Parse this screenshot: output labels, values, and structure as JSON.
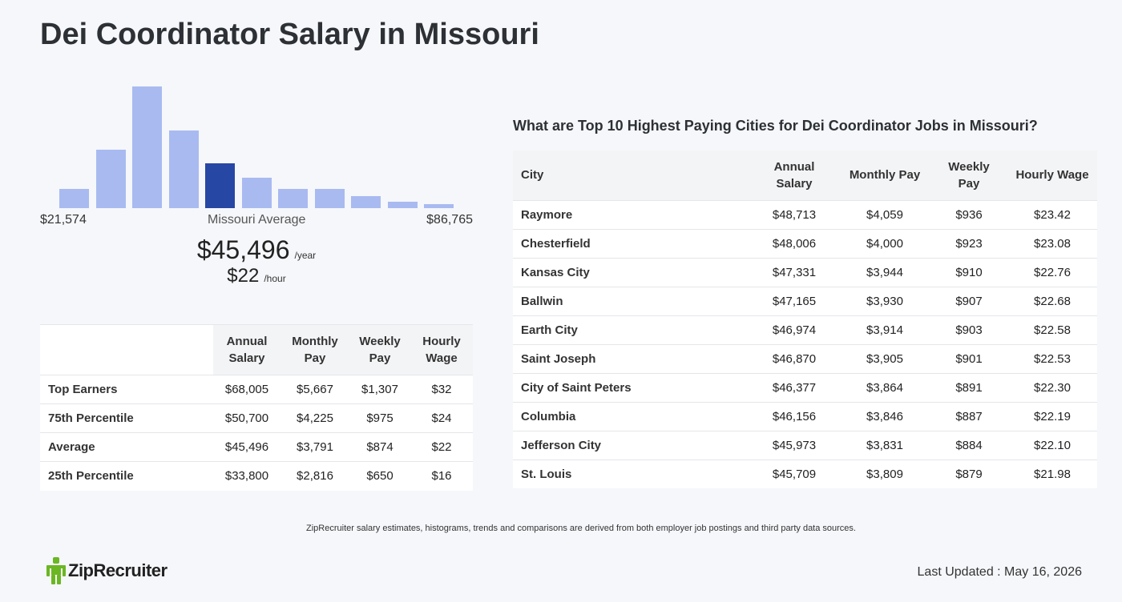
{
  "title": "Dei Coordinator Salary in Missouri",
  "histogram": {
    "min_label": "$21,574",
    "max_label": "$86,765",
    "avg_label": "Missouri Average",
    "bars": [
      0.16,
      0.48,
      1.0,
      0.64,
      0.37,
      0.25,
      0.16,
      0.16,
      0.1,
      0.05,
      0.03
    ],
    "highlight_index": 4,
    "bar_color": "#a9baf1",
    "highlight_color": "#2747a5"
  },
  "average": {
    "year_value": "$45,496",
    "year_unit": "/year",
    "hour_value": "$22",
    "hour_unit": "/hour"
  },
  "percentile_table": {
    "headers": [
      "Annual Salary",
      "Monthly Pay",
      "Weekly Pay",
      "Hourly Wage"
    ],
    "rows": [
      {
        "label": "Top Earners",
        "annual": "$68,005",
        "monthly": "$5,667",
        "weekly": "$1,307",
        "hourly": "$32"
      },
      {
        "label": "75th Percentile",
        "annual": "$50,700",
        "monthly": "$4,225",
        "weekly": "$975",
        "hourly": "$24"
      },
      {
        "label": "Average",
        "annual": "$45,496",
        "monthly": "$3,791",
        "weekly": "$874",
        "hourly": "$22"
      },
      {
        "label": "25th Percentile",
        "annual": "$33,800",
        "monthly": "$2,816",
        "weekly": "$650",
        "hourly": "$16"
      }
    ]
  },
  "cities": {
    "heading": "What are Top 10 Highest Paying Cities for Dei Coordinator Jobs in Missouri?",
    "headers": [
      "City",
      "Annual Salary",
      "Monthly Pay",
      "Weekly Pay",
      "Hourly Wage"
    ],
    "rows": [
      {
        "city": "Raymore",
        "annual": "$48,713",
        "monthly": "$4,059",
        "weekly": "$936",
        "hourly": "$23.42"
      },
      {
        "city": "Chesterfield",
        "annual": "$48,006",
        "monthly": "$4,000",
        "weekly": "$923",
        "hourly": "$23.08"
      },
      {
        "city": "Kansas City",
        "annual": "$47,331",
        "monthly": "$3,944",
        "weekly": "$910",
        "hourly": "$22.76"
      },
      {
        "city": "Ballwin",
        "annual": "$47,165",
        "monthly": "$3,930",
        "weekly": "$907",
        "hourly": "$22.68"
      },
      {
        "city": "Earth City",
        "annual": "$46,974",
        "monthly": "$3,914",
        "weekly": "$903",
        "hourly": "$22.58"
      },
      {
        "city": "Saint Joseph",
        "annual": "$46,870",
        "monthly": "$3,905",
        "weekly": "$901",
        "hourly": "$22.53"
      },
      {
        "city": "City of Saint Peters",
        "annual": "$46,377",
        "monthly": "$3,864",
        "weekly": "$891",
        "hourly": "$22.30"
      },
      {
        "city": "Columbia",
        "annual": "$46,156",
        "monthly": "$3,846",
        "weekly": "$887",
        "hourly": "$22.19"
      },
      {
        "city": "Jefferson City",
        "annual": "$45,973",
        "monthly": "$3,831",
        "weekly": "$884",
        "hourly": "$22.10"
      },
      {
        "city": "St. Louis",
        "annual": "$45,709",
        "monthly": "$3,809",
        "weekly": "$879",
        "hourly": "$21.98"
      }
    ]
  },
  "footnote": "ZipRecruiter salary estimates, histograms, trends and comparisons are derived from both employer job postings and third party data sources.",
  "logo": {
    "text": "ZipRecruiter",
    "icon": "zip-person-icon",
    "color": "#6bb623"
  },
  "last_updated": "Last Updated : May 16, 2026"
}
